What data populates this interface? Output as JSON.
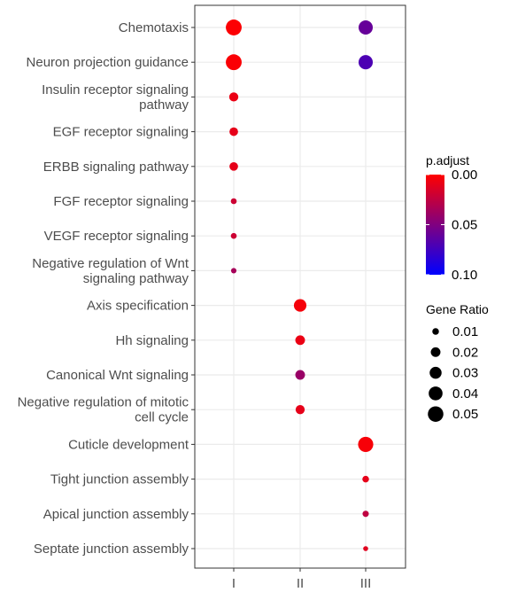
{
  "chart_data": {
    "type": "scatter",
    "title": "",
    "xlabel": "",
    "ylabel": "",
    "grid": true,
    "legend_position": "right",
    "clusters": [
      "I",
      "II",
      "III"
    ],
    "terms": [
      {
        "label": [
          "Chemotaxis"
        ]
      },
      {
        "label": [
          "Neuron projection guidance"
        ]
      },
      {
        "label": [
          "Insulin receptor signaling",
          "pathway"
        ]
      },
      {
        "label": [
          "EGF receptor signaling"
        ]
      },
      {
        "label": [
          "ERBB signaling pathway"
        ]
      },
      {
        "label": [
          "FGF receptor signaling"
        ]
      },
      {
        "label": [
          "VEGF receptor signaling"
        ]
      },
      {
        "label": [
          "Negative regulation of Wnt",
          "signaling pathway"
        ]
      },
      {
        "label": [
          "Axis specification"
        ]
      },
      {
        "label": [
          "Hh signaling"
        ]
      },
      {
        "label": [
          "Canonical Wnt signaling"
        ]
      },
      {
        "label": [
          "Negative regulation of mitotic",
          "cell cycle"
        ]
      },
      {
        "label": [
          "Cuticle development"
        ]
      },
      {
        "label": [
          "Tight junction assembly"
        ]
      },
      {
        "label": [
          "Apical junction assembly"
        ]
      },
      {
        "label": [
          "Septate junction assembly"
        ]
      }
    ],
    "points": [
      {
        "term": "Chemotaxis",
        "cluster": "I",
        "gene_ratio": 0.052,
        "p_adjust": 0.001
      },
      {
        "term": "Neuron projection guidance",
        "cluster": "I",
        "gene_ratio": 0.052,
        "p_adjust": 0.002
      },
      {
        "term": "Insulin receptor signaling pathway",
        "cluster": "I",
        "gene_ratio": 0.018,
        "p_adjust": 0.008
      },
      {
        "term": "EGF receptor signaling",
        "cluster": "I",
        "gene_ratio": 0.016,
        "p_adjust": 0.01
      },
      {
        "term": "ERBB signaling pathway",
        "cluster": "I",
        "gene_ratio": 0.016,
        "p_adjust": 0.01
      },
      {
        "term": "FGF receptor signaling",
        "cluster": "I",
        "gene_ratio": 0.008,
        "p_adjust": 0.02
      },
      {
        "term": "VEGF receptor signaling",
        "cluster": "I",
        "gene_ratio": 0.008,
        "p_adjust": 0.02
      },
      {
        "term": "Negative regulation of Wnt signaling pathway",
        "cluster": "I",
        "gene_ratio": 0.007,
        "p_adjust": 0.035
      },
      {
        "term": "Chemotaxis",
        "cluster": "III",
        "gene_ratio": 0.042,
        "p_adjust": 0.06
      },
      {
        "term": "Neuron projection guidance",
        "cluster": "III",
        "gene_ratio": 0.042,
        "p_adjust": 0.07
      },
      {
        "term": "Axis specification",
        "cluster": "II",
        "gene_ratio": 0.033,
        "p_adjust": 0.004
      },
      {
        "term": "Hh signaling",
        "cluster": "II",
        "gene_ratio": 0.02,
        "p_adjust": 0.008
      },
      {
        "term": "Canonical Wnt signaling",
        "cluster": "II",
        "gene_ratio": 0.02,
        "p_adjust": 0.04
      },
      {
        "term": "Negative regulation of mitotic cell cycle",
        "cluster": "II",
        "gene_ratio": 0.018,
        "p_adjust": 0.01
      },
      {
        "term": "Cuticle development",
        "cluster": "III",
        "gene_ratio": 0.048,
        "p_adjust": 0.003
      },
      {
        "term": "Tight junction assembly",
        "cluster": "III",
        "gene_ratio": 0.01,
        "p_adjust": 0.01
      },
      {
        "term": "Apical junction assembly",
        "cluster": "III",
        "gene_ratio": 0.009,
        "p_adjust": 0.025
      },
      {
        "term": "Septate junction assembly",
        "cluster": "III",
        "gene_ratio": 0.006,
        "p_adjust": 0.012
      }
    ],
    "color_legend": {
      "title": "p.adjust",
      "range": [
        0.0,
        0.1
      ],
      "ticks": [
        "0.00",
        "0.05",
        "0.10"
      ],
      "low_color": "#ff0000",
      "high_color": "#0000ff"
    },
    "size_legend": {
      "title": "Gene Ratio",
      "items": [
        {
          "label": "0.01",
          "value": 0.01
        },
        {
          "label": "0.02",
          "value": 0.02
        },
        {
          "label": "0.03",
          "value": 0.03
        },
        {
          "label": "0.04",
          "value": 0.04
        },
        {
          "label": "0.05",
          "value": 0.05
        }
      ]
    },
    "colors": {
      "grid": "#ebebeb",
      "panel_border": "#333333",
      "axis_text": "#4d4d4d",
      "legend_text": "#000000",
      "legend_dot": "#000000"
    }
  }
}
